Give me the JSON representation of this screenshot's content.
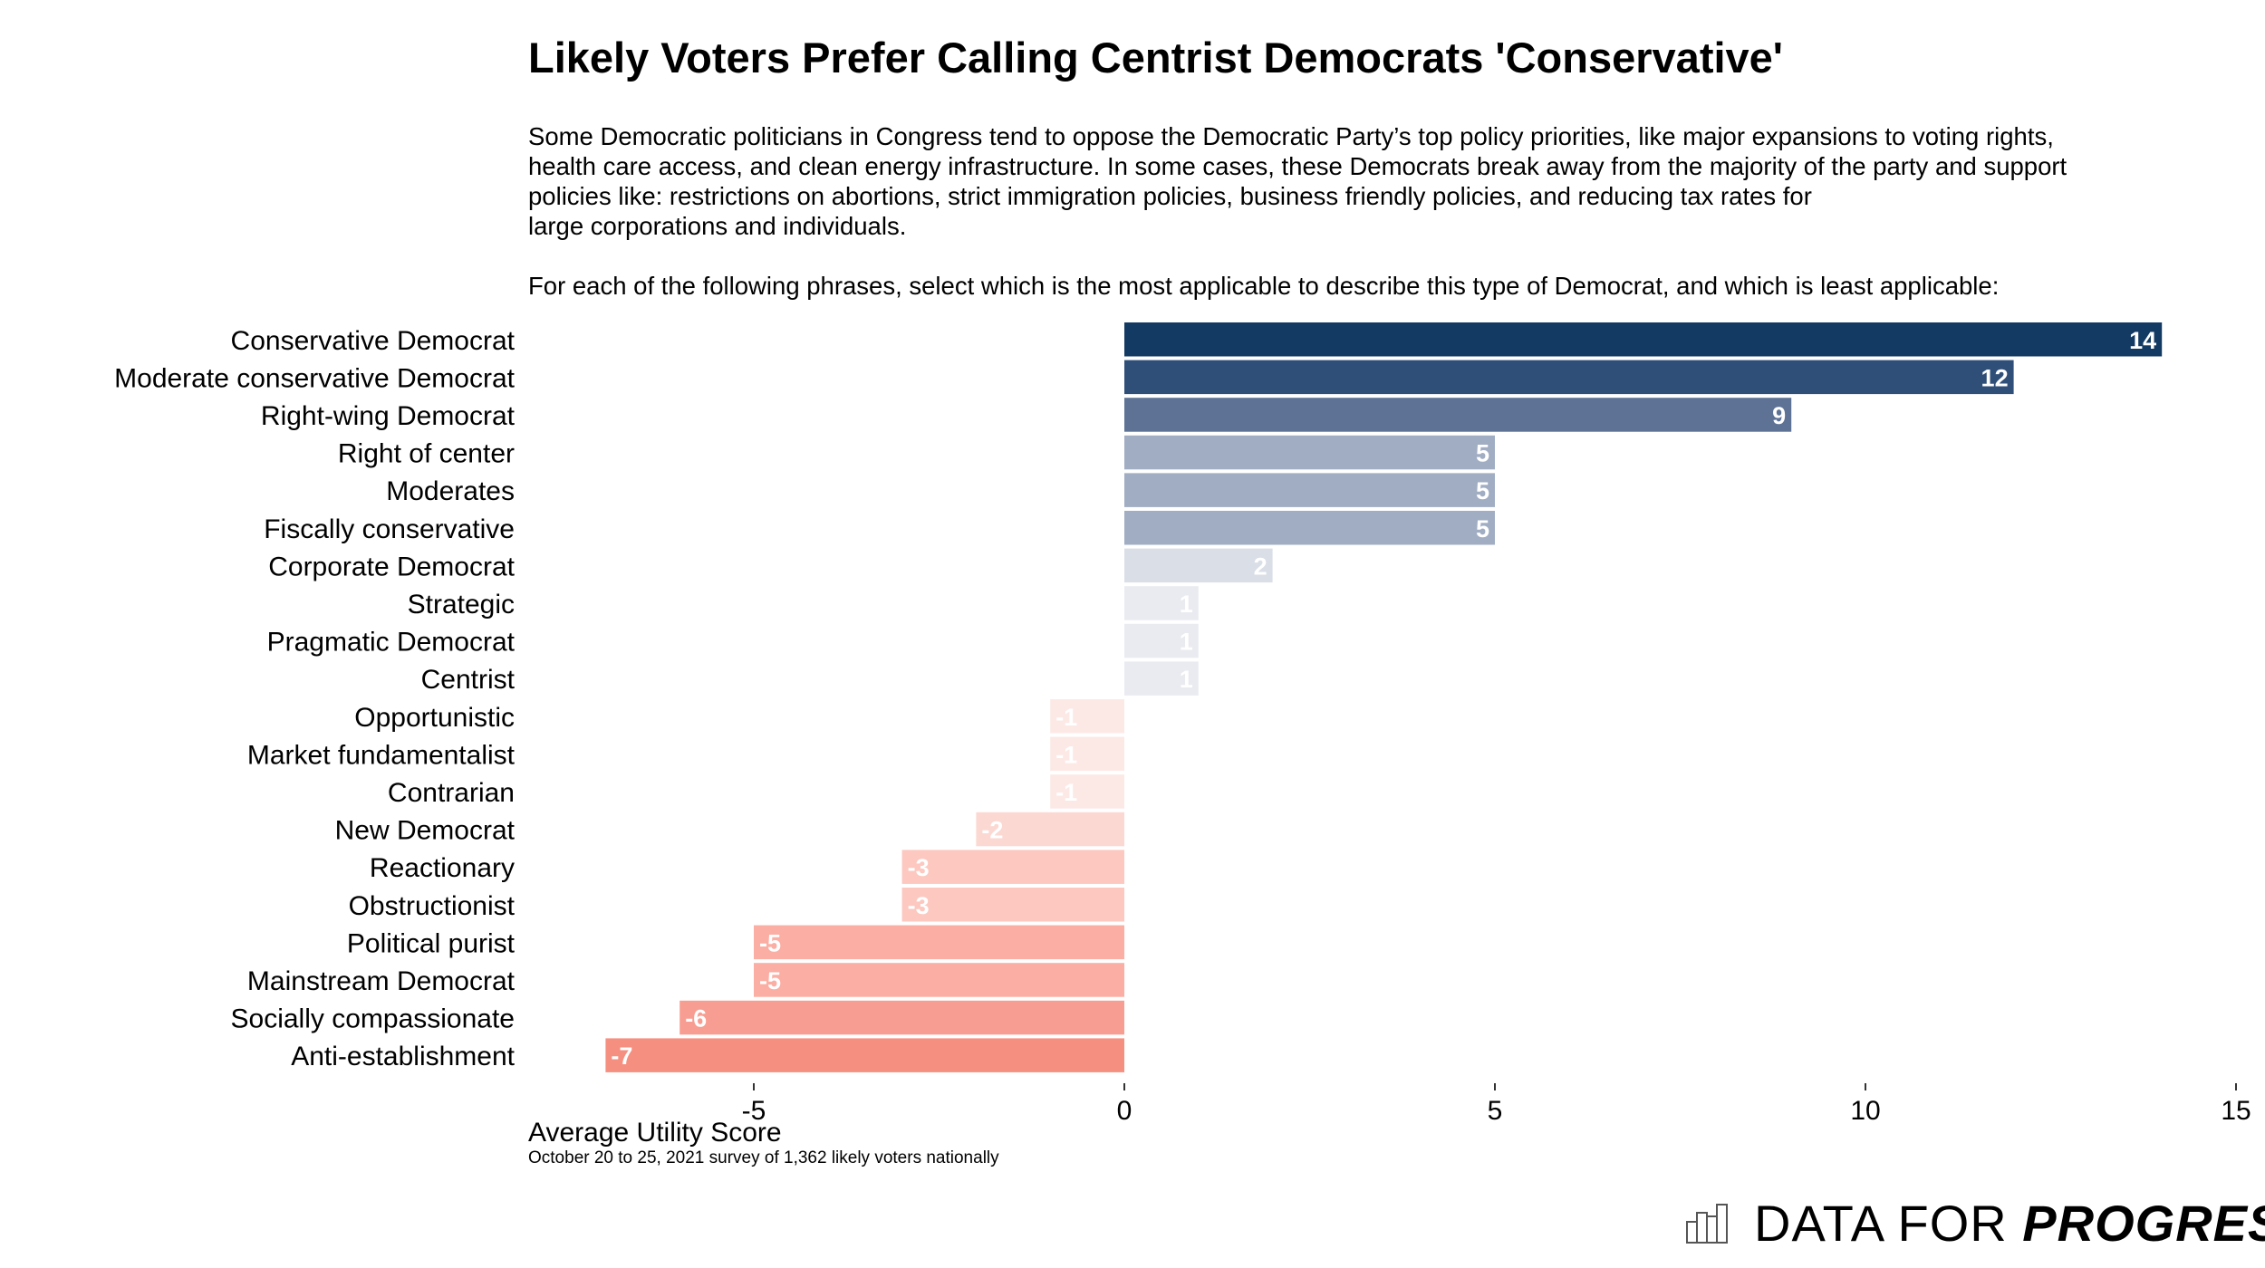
{
  "title": "Likely Voters Prefer Calling Centrist Democrats 'Conservative'",
  "description": [
    "Some Democratic politicians in Congress tend to oppose the Democratic Party’s top policy priorities, like major expansions to voting rights,",
    "health care access, and clean energy infrastructure. In some cases, these Democrats break away from the majority of the party and support",
    "policies like: restrictions on abortions, strict immigration policies, business friendly policies, and reducing tax rates for",
    "large corporations and individuals."
  ],
  "question": "For each of the following phrases, select which is the most applicable to describe this type of Democrat, and which is least applicable:",
  "source": "October 20 to 25, 2021 survey of 1,362 likely voters nationally",
  "logo": {
    "text_light": "DATA FOR",
    "text_bold": "PROGRESS"
  },
  "chart_data": {
    "type": "bar",
    "orientation": "horizontal",
    "xlabel": "Average Utility Score",
    "ylabel": "",
    "xlim": [
      -7,
      15
    ],
    "xticks": [
      -5,
      0,
      5,
      10,
      15
    ],
    "grid": false,
    "categories": [
      "Conservative Democrat",
      "Moderate conservative Democrat",
      "Right-wing Democrat",
      "Right of center",
      "Moderates",
      "Fiscally conservative",
      "Corporate Democrat",
      "Strategic",
      "Pragmatic Democrat",
      "Centrist",
      "Opportunistic",
      "Market fundamentalist",
      "Contrarian",
      "New Democrat",
      "Reactionary",
      "Obstructionist",
      "Political purist",
      "Mainstream Democrat",
      "Socially compassionate",
      "Anti-establishment"
    ],
    "values": [
      14,
      12,
      9,
      5,
      5,
      5,
      2,
      1,
      1,
      1,
      -1,
      -1,
      -1,
      -2,
      -3,
      -3,
      -5,
      -5,
      -6,
      -7
    ],
    "colors": [
      "#133a63",
      "#2f4f78",
      "#5d7295",
      "#a1adc3",
      "#a1adc3",
      "#a1adc3",
      "#d9dee7",
      "#eaebf0",
      "#eaebf0",
      "#eaebf0",
      "#fce9e6",
      "#fce9e6",
      "#fce9e6",
      "#fcd8d2",
      "#fcc8bf",
      "#fcc8bf",
      "#fbaea3",
      "#fbaea3",
      "#f89d91",
      "#f58f80"
    ]
  }
}
